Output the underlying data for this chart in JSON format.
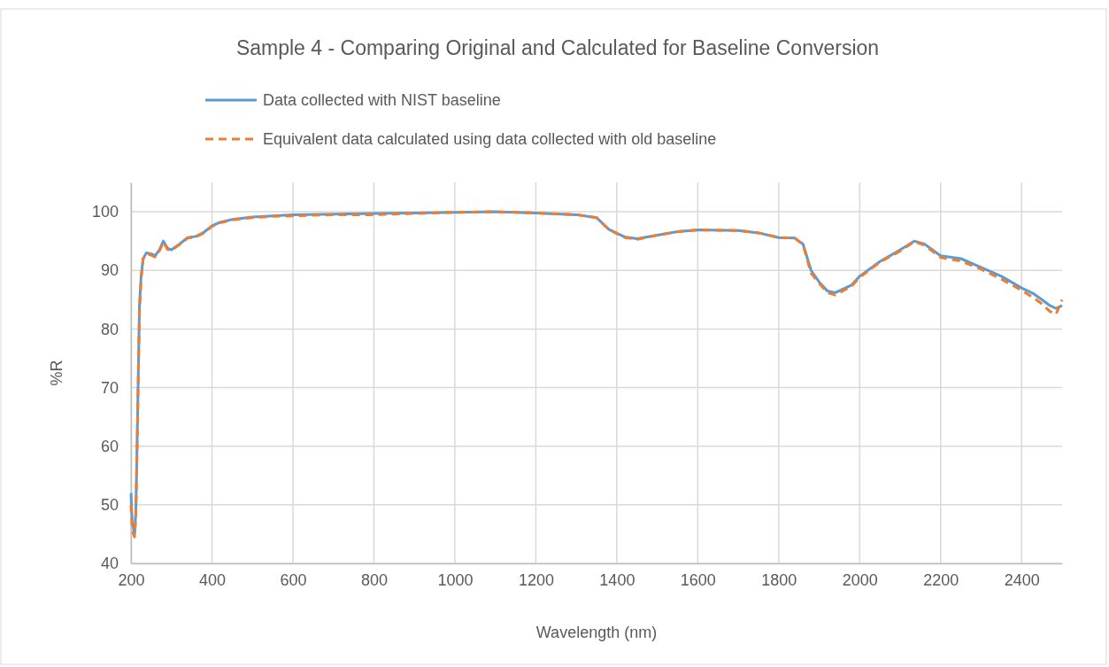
{
  "chart_data": {
    "type": "line",
    "title": "Sample 4 - Comparing Original and Calculated for Baseline Conversion",
    "xlabel": "Wavelength (nm)",
    "ylabel": "%R",
    "xlim": [
      200,
      2500
    ],
    "xticks": [
      200,
      400,
      600,
      800,
      1000,
      1200,
      1400,
      1600,
      1800,
      2000,
      2200,
      2400
    ],
    "ylim": [
      40,
      105
    ],
    "yticks": [
      40,
      50,
      60,
      70,
      80,
      90,
      100
    ],
    "grid": true,
    "legend": "top",
    "marker": "none",
    "x": [
      200,
      203,
      206,
      209,
      212,
      215,
      218,
      221,
      225,
      230,
      238,
      250,
      260,
      270,
      280,
      290,
      300,
      320,
      340,
      360,
      380,
      400,
      420,
      450,
      500,
      550,
      600,
      700,
      800,
      900,
      1000,
      1100,
      1200,
      1300,
      1350,
      1380,
      1420,
      1450,
      1500,
      1550,
      1600,
      1700,
      1750,
      1800,
      1840,
      1860,
      1880,
      1900,
      1920,
      1940,
      1980,
      2000,
      2050,
      2100,
      2135,
      2160,
      2200,
      2250,
      2300,
      2350,
      2400,
      2430,
      2450,
      2470,
      2485,
      2500
    ],
    "series": [
      {
        "name": "Data collected with NIST baseline",
        "color": "#5b9bd5",
        "line_style": "solid",
        "values": [
          52,
          47,
          46,
          45,
          49,
          60,
          72,
          84,
          89,
          92,
          93,
          92.8,
          92.5,
          93.5,
          95,
          93.8,
          93.5,
          94.5,
          95.6,
          95.8,
          96.5,
          97.6,
          98.2,
          98.7,
          99.1,
          99.3,
          99.5,
          99.6,
          99.7,
          99.8,
          99.9,
          100,
          99.8,
          99.5,
          99,
          97,
          95.7,
          95.4,
          96,
          96.6,
          96.9,
          96.8,
          96.4,
          95.6,
          95.5,
          94.5,
          90,
          88,
          86.5,
          86.2,
          87.5,
          89,
          91.5,
          93.5,
          95,
          94.5,
          92.5,
          92,
          90.5,
          89,
          87,
          86,
          85,
          84,
          83.5,
          84
        ]
      },
      {
        "name": "Equivalent data calculated using data collected with old baseline",
        "color": "#ed7d31",
        "line_style": "dashed",
        "values": [
          50,
          46,
          45,
          44.5,
          48,
          59,
          71,
          83,
          88.5,
          92,
          92.8,
          92.6,
          92.3,
          93.3,
          94.8,
          93.6,
          93.4,
          94.4,
          95.5,
          95.7,
          96.4,
          97.5,
          98.1,
          98.6,
          99,
          99.2,
          99.3,
          99.5,
          99.5,
          99.7,
          99.9,
          100,
          99.8,
          99.5,
          99,
          97,
          95.6,
          95.3,
          96,
          96.6,
          96.9,
          96.8,
          96.4,
          95.6,
          95.5,
          94.4,
          89.5,
          87.8,
          86.2,
          85.8,
          87.3,
          88.8,
          91.4,
          93.3,
          94.9,
          94.3,
          92.2,
          91.6,
          90.2,
          88.5,
          86.6,
          85.3,
          84.3,
          83,
          82.5,
          85
        ]
      }
    ]
  }
}
